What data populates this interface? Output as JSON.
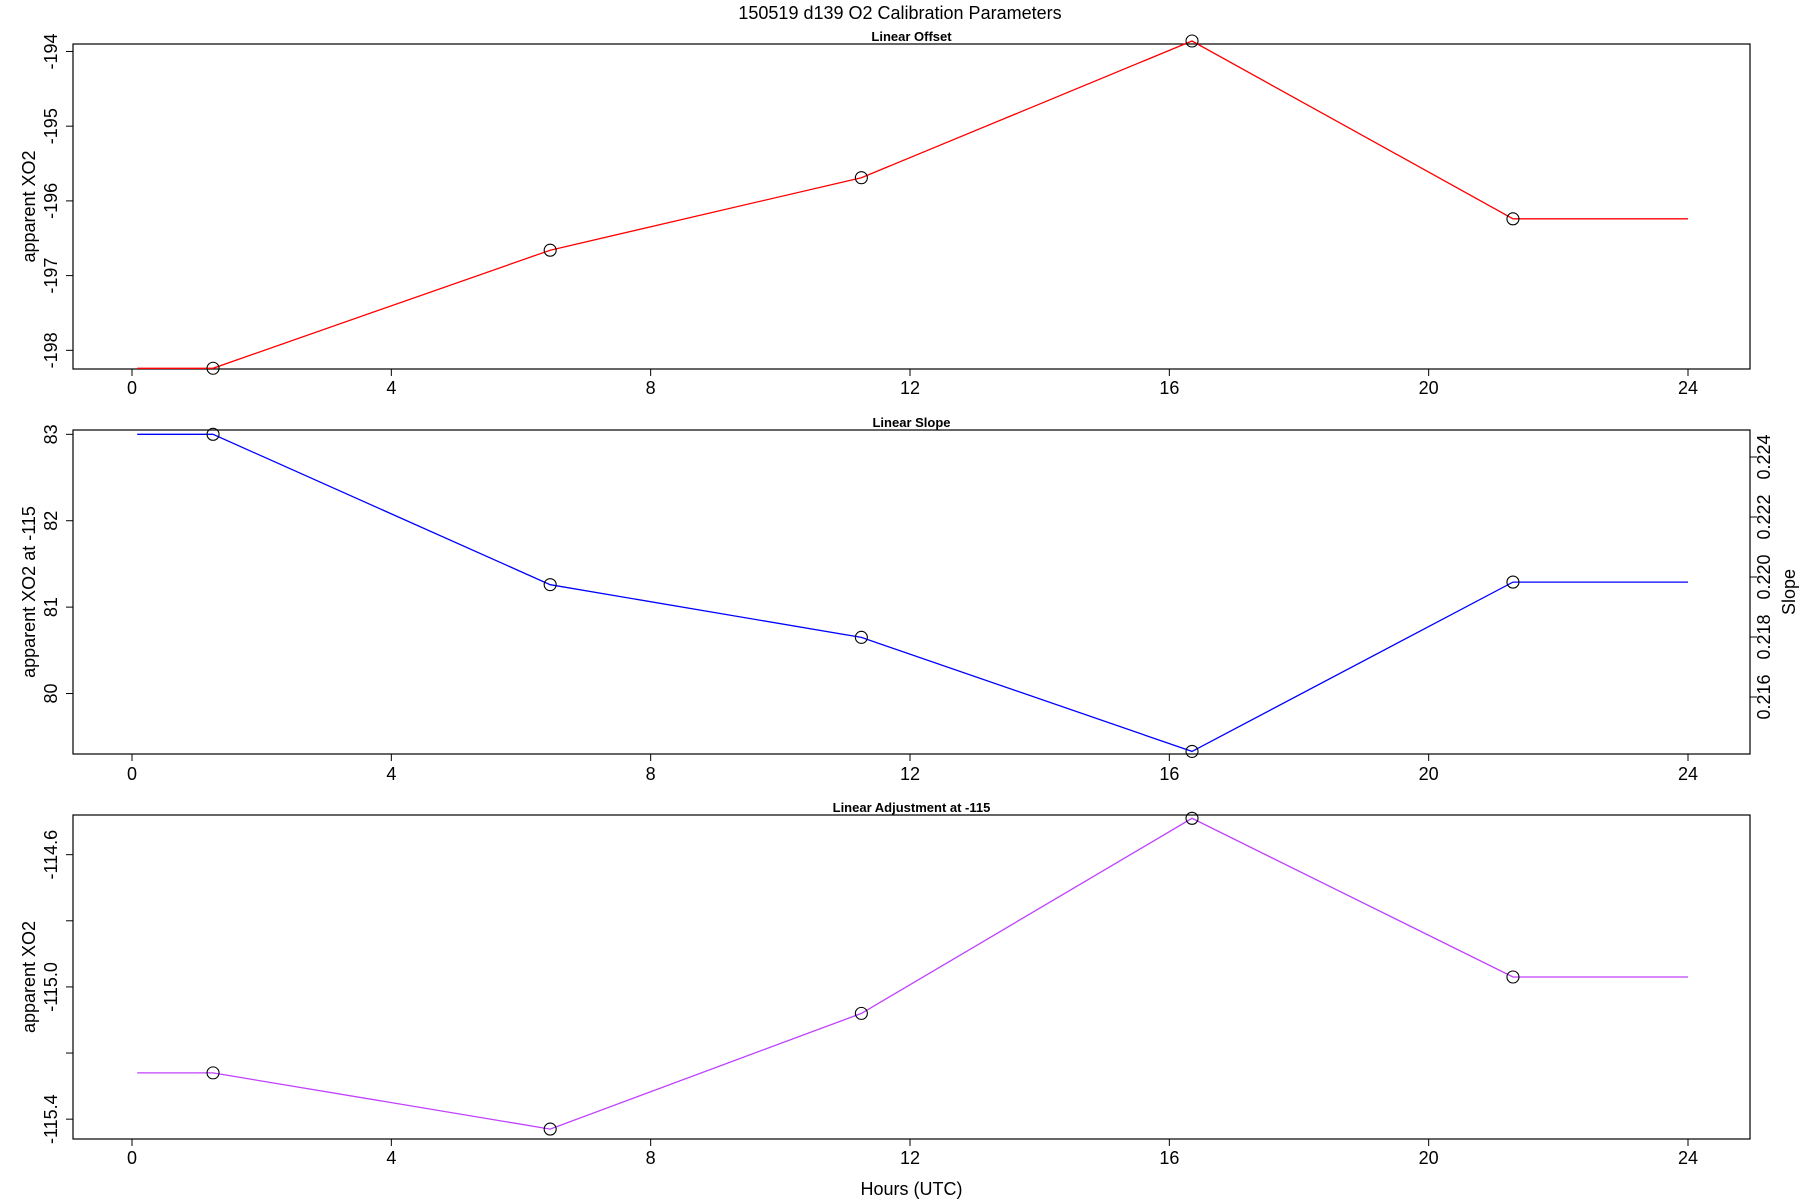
{
  "title": "150519   d139   O2 Calibration Parameters",
  "colors": {
    "offset": "#ff0000",
    "slope": "#0000ff",
    "adjustment": "#bf40ff",
    "marker": "#000000"
  },
  "chart_data": [
    {
      "type": "line",
      "title": "Linear Offset",
      "xlabel": "",
      "ylabel": "apparent XO2",
      "xlim": [
        0,
        24
      ],
      "x_ticks": [
        "0",
        "4",
        "8",
        "12",
        "16",
        "20",
        "24"
      ],
      "ylim": [
        -198.25,
        -193.9
      ],
      "y_ticks": [
        "-198",
        "-197",
        "-196",
        "-195",
        "-194"
      ],
      "x_flat_start": 0.08,
      "x_flat_end": 24,
      "series": [
        {
          "x": [
            1.25,
            6.45,
            11.25,
            16.35,
            21.3
          ],
          "y": [
            -198.24,
            -196.66,
            -195.69,
            -193.86,
            -196.24
          ]
        }
      ]
    },
    {
      "type": "line",
      "title": "Linear Slope",
      "xlabel": "",
      "ylabel": "apparent XO2 at -115",
      "ylabel_right": "Slope",
      "xlim": [
        0,
        24
      ],
      "x_ticks": [
        "0",
        "4",
        "8",
        "12",
        "16",
        "20",
        "24"
      ],
      "ylim": [
        79.3,
        83.05
      ],
      "y_ticks": [
        "80",
        "81",
        "82",
        "83"
      ],
      "y2lim": [
        0.2141,
        0.2249
      ],
      "y2_ticks": [
        "0.216",
        "0.218",
        "0.220",
        "0.222",
        "0.224"
      ],
      "x_flat_start": 0.08,
      "x_flat_end": 24,
      "series": [
        {
          "x": [
            1.25,
            6.45,
            11.25,
            16.35,
            21.3
          ],
          "y": [
            83.0,
            81.26,
            80.65,
            79.33,
            81.29
          ]
        }
      ]
    },
    {
      "type": "line",
      "title": "Linear Adjustment at -115",
      "xlabel": "Hours (UTC)",
      "ylabel": "apparent XO2",
      "xlim": [
        0,
        24
      ],
      "x_ticks": [
        "0",
        "4",
        "8",
        "12",
        "16",
        "20",
        "24"
      ],
      "ylim": [
        -115.46,
        -114.48
      ],
      "y_ticks": [
        "-115.4",
        "-115.0",
        "-114.6"
      ],
      "y_minor_ticks": [
        -115.2,
        -114.8
      ],
      "x_flat_start": 0.08,
      "x_flat_end": 24,
      "series": [
        {
          "x": [
            1.25,
            6.45,
            11.25,
            16.35,
            21.3
          ],
          "y": [
            -115.26,
            -115.43,
            -115.08,
            -114.49,
            -114.97
          ]
        }
      ]
    }
  ]
}
